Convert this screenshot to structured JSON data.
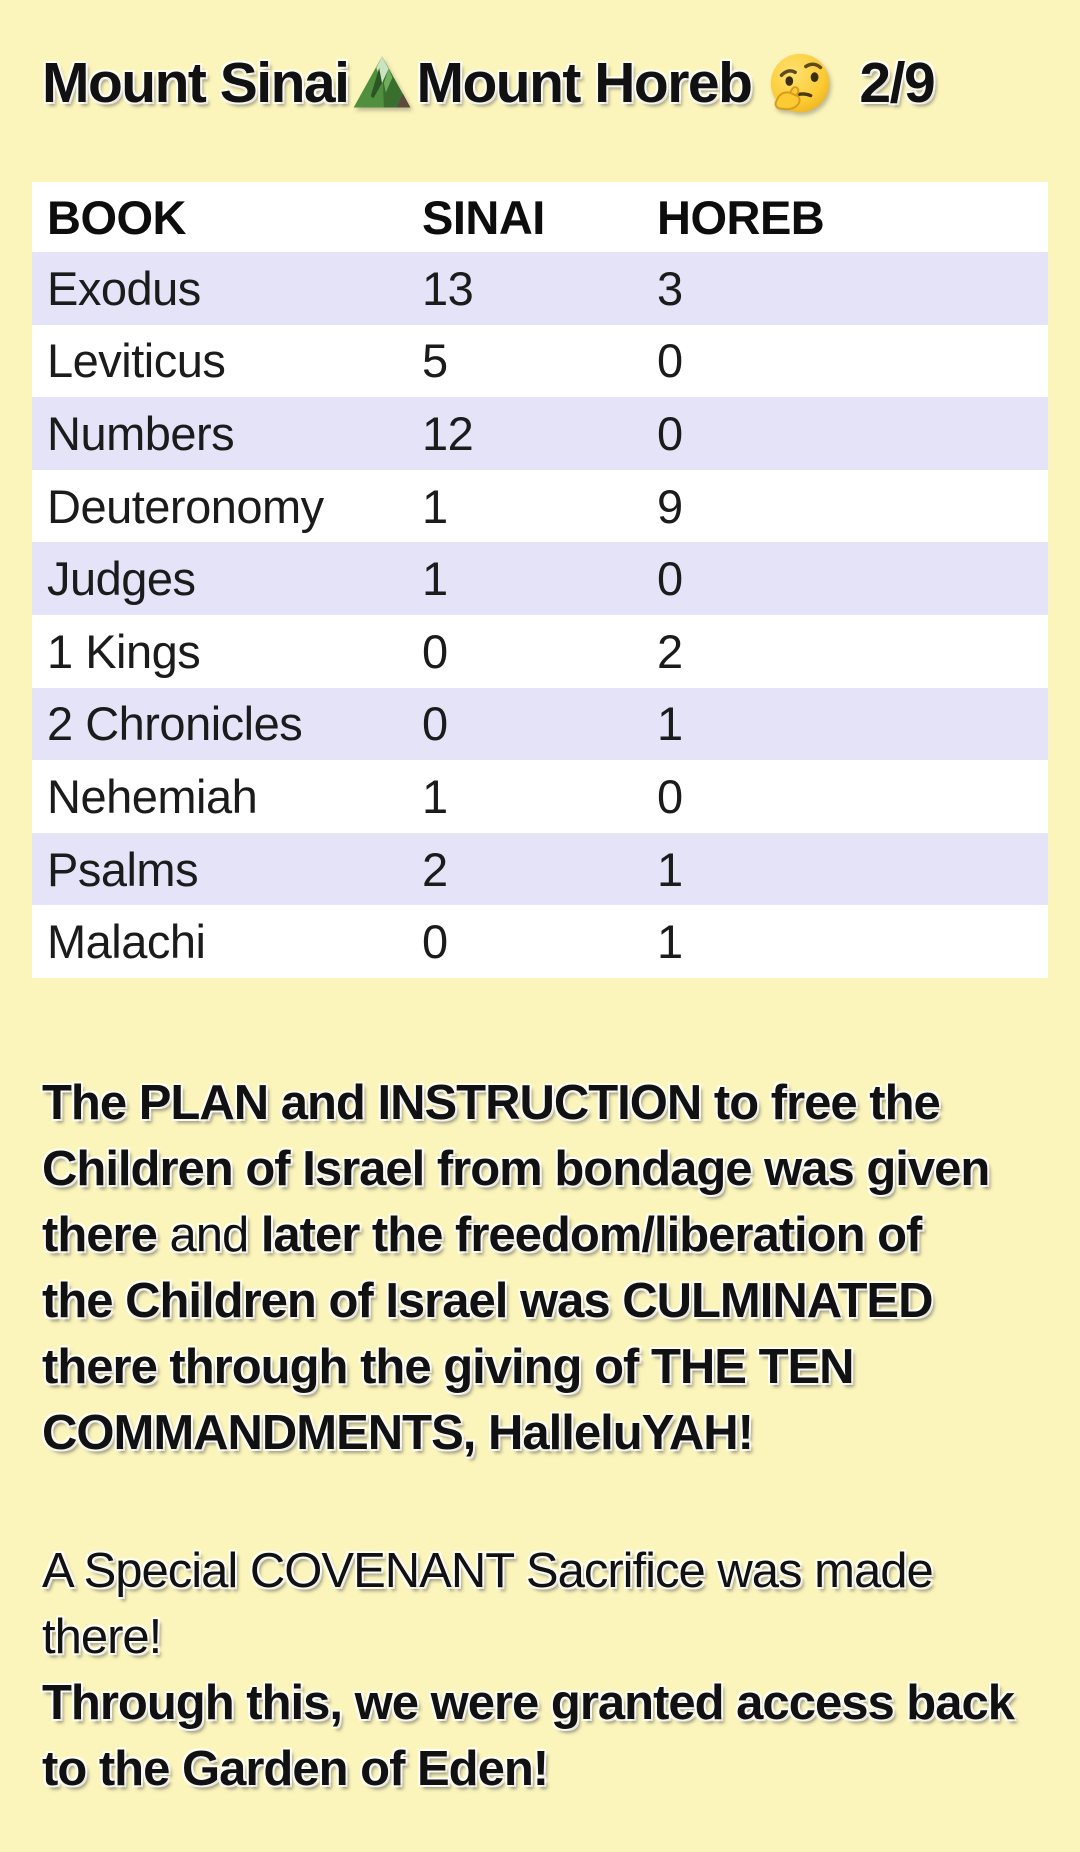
{
  "title": {
    "part1": "Mount Sinai",
    "part2": "Mount Horeb",
    "page": "2/9",
    "icons": [
      "mountain-icon",
      "thinking-face-icon"
    ]
  },
  "table": {
    "headers": [
      "BOOK",
      "SINAI",
      "HOREB"
    ],
    "rows": [
      [
        "Exodus",
        "13",
        "3"
      ],
      [
        "Leviticus",
        "5",
        "0"
      ],
      [
        "Numbers",
        "12",
        "0"
      ],
      [
        "Deuteronomy",
        "1",
        "9"
      ],
      [
        "Judges",
        "1",
        "0"
      ],
      [
        "1 Kings",
        "0",
        "2"
      ],
      [
        "2 Chronicles",
        "0",
        "1"
      ],
      [
        "Nehemiah",
        "1",
        "0"
      ],
      [
        "Psalms",
        "2",
        "1"
      ],
      [
        "Malachi",
        "0",
        "1"
      ]
    ]
  },
  "paragraphs": [
    {
      "lines": [
        [
          {
            "t": "The PLAN and INSTRUCTION to free the",
            "b": true
          }
        ],
        [
          {
            "t": "Children of Israel from bondage was given",
            "b": true
          }
        ],
        [
          {
            "t": "there ",
            "b": true
          },
          {
            "t": "and",
            "b": false
          },
          {
            "t": " later the freedom/liberation of",
            "b": true
          }
        ],
        [
          {
            "t": "the Children of Israel was CULMINATED",
            "b": true
          }
        ],
        [
          {
            "t": "there through the giving of THE TEN",
            "b": true
          }
        ],
        [
          {
            "t": "COMMANDMENTS, HalleluYAH!",
            "b": true
          }
        ]
      ]
    },
    {
      "lines": [
        [
          {
            "t": "A Special COVENANT Sacrifice was made",
            "b": false
          }
        ],
        [
          {
            "t": "there!",
            "b": false
          }
        ],
        [
          {
            "t": "Through this, we were granted access back",
            "b": true
          }
        ],
        [
          {
            "t": "to the Garden of Eden!",
            "b": true
          }
        ]
      ]
    }
  ],
  "colors": {
    "background": "#FBF5BB",
    "row_alt": "#E4E3F7",
    "row_base": "#FFFFFF",
    "text": "#111111"
  }
}
